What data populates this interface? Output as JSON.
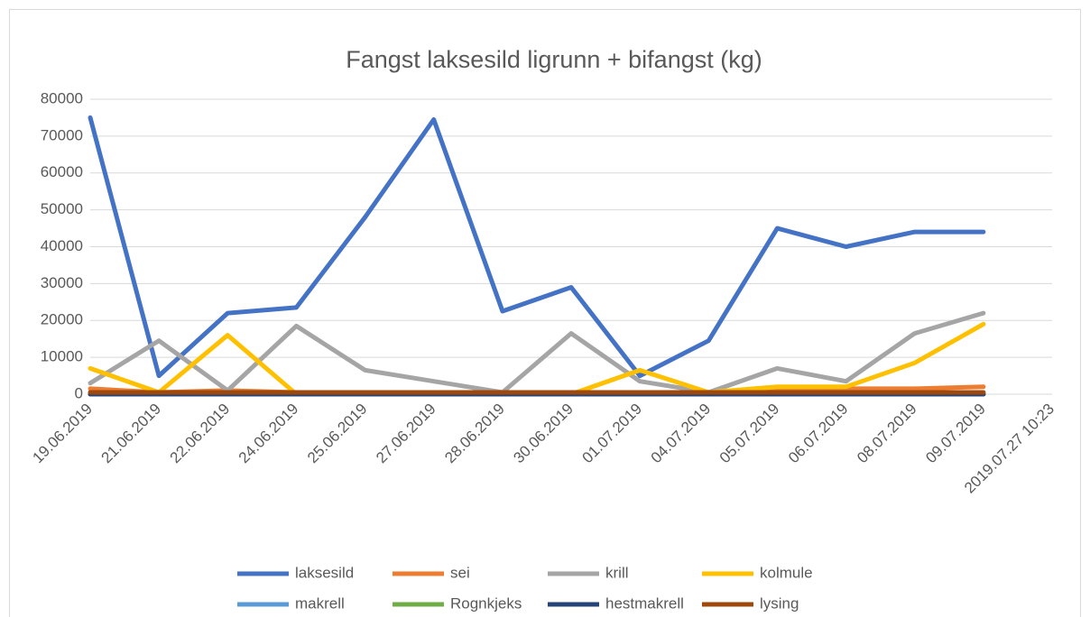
{
  "chart_data": {
    "type": "line",
    "title": "Fangst laksesild ligrunn + bifangst (kg)",
    "categories": [
      "19.06.2019",
      "21.06.2019",
      "22.06.2019",
      "24.06.2019",
      "25.06.2019",
      "27.06.2019",
      "28.06.2019",
      "30.06.2019",
      "01.07.2019",
      "04.07.2019",
      "05.07.2019",
      "06.07.2019",
      "08.07.2019",
      "09.07.2019",
      "2019.07.27 10:23"
    ],
    "ylim": [
      0,
      80000
    ],
    "yticks": [
      0,
      10000,
      20000,
      30000,
      40000,
      50000,
      60000,
      70000,
      80000
    ],
    "grid": true,
    "legend": "bottom",
    "series": [
      {
        "name": "laksesild",
        "color": "#4472c4",
        "values": [
          75000,
          5000,
          22000,
          23500,
          48000,
          74500,
          22500,
          29000,
          5000,
          14500,
          45000,
          40000,
          44000,
          44000,
          null
        ]
      },
      {
        "name": "sei",
        "color": "#ed7d31",
        "values": [
          1500,
          500,
          1000,
          500,
          500,
          500,
          500,
          500,
          500,
          500,
          1000,
          1500,
          1500,
          2000,
          null
        ]
      },
      {
        "name": "krill",
        "color": "#a5a5a5",
        "values": [
          3000,
          14500,
          1000,
          18500,
          6500,
          3500,
          500,
          16500,
          3500,
          500,
          7000,
          3500,
          16500,
          22000,
          null
        ]
      },
      {
        "name": "kolmule",
        "color": "#ffc000",
        "values": [
          7000,
          500,
          16000,
          0,
          500,
          500,
          0,
          0,
          6500,
          500,
          2000,
          2000,
          8500,
          19000,
          null
        ]
      },
      {
        "name": "makrell",
        "color": "#5b9bd5",
        "values": [
          0,
          0,
          0,
          0,
          0,
          0,
          0,
          0,
          0,
          0,
          0,
          0,
          0,
          0,
          null
        ]
      },
      {
        "name": "Rognkjeks",
        "color": "#70ad47",
        "values": [
          0,
          0,
          0,
          0,
          0,
          0,
          0,
          0,
          0,
          0,
          0,
          0,
          0,
          0,
          null
        ]
      },
      {
        "name": "hestmakrell",
        "color": "#264478",
        "values": [
          0,
          0,
          0,
          0,
          0,
          0,
          0,
          0,
          0,
          0,
          0,
          0,
          0,
          0,
          null
        ]
      },
      {
        "name": "lysing",
        "color": "#9e480e",
        "values": [
          500,
          500,
          500,
          500,
          500,
          500,
          500,
          500,
          500,
          500,
          500,
          500,
          500,
          500,
          null
        ]
      }
    ]
  }
}
